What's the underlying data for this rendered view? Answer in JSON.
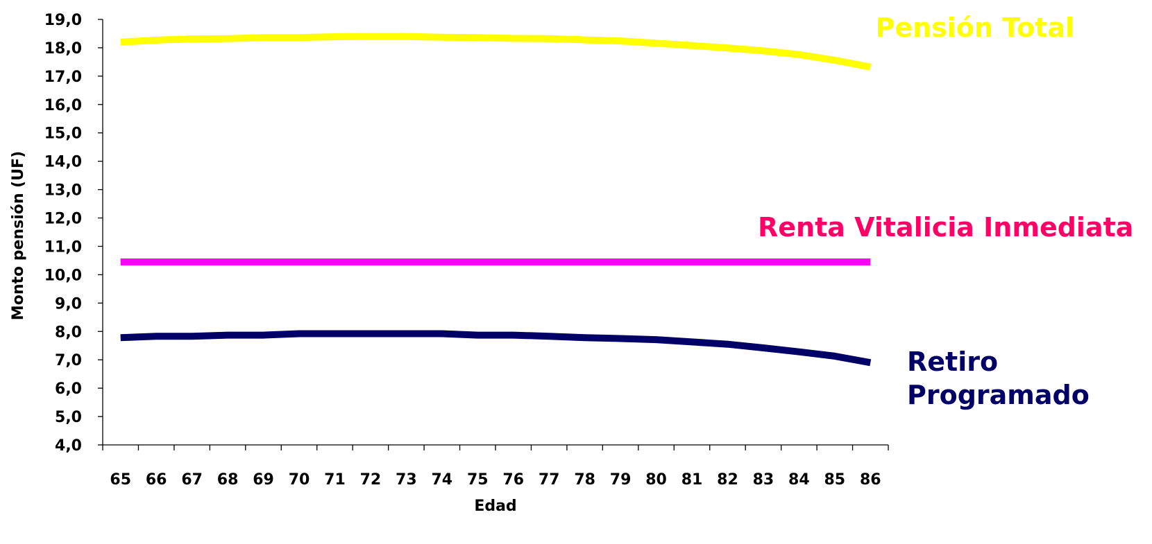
{
  "chart_data": {
    "type": "line",
    "xlabel": "Edad",
    "ylabel": "Monto pensión (UF)",
    "ylim": [
      4,
      19
    ],
    "yticks": [
      "4,0",
      "5,0",
      "6,0",
      "7,0",
      "8,0",
      "9,0",
      "10,0",
      "11,0",
      "12,0",
      "13,0",
      "14,0",
      "15,0",
      "16,0",
      "17,0",
      "18,0",
      "19,0"
    ],
    "categories": [
      "65",
      "66",
      "67",
      "68",
      "69",
      "70",
      "71",
      "72",
      "73",
      "74",
      "75",
      "76",
      "77",
      "78",
      "79",
      "80",
      "81",
      "82",
      "83",
      "84",
      "85",
      "86"
    ],
    "grid": false,
    "series": [
      {
        "name": "Pensión Total",
        "color": "#ffff00",
        "label_lines": [
          "Pensión Total"
        ],
        "values": [
          18.2,
          18.27,
          18.31,
          18.32,
          18.36,
          18.36,
          18.39,
          18.4,
          18.4,
          18.37,
          18.36,
          18.33,
          18.32,
          18.28,
          18.24,
          18.16,
          18.08,
          17.99,
          17.89,
          17.76,
          17.56,
          17.32
        ]
      },
      {
        "name": "Renta Vitalicia Inmediata",
        "color": "#ff00ff",
        "label_color": "#ff0066",
        "label_lines": [
          "Renta Vitalicia Inmediata"
        ],
        "values": [
          10.45,
          10.45,
          10.45,
          10.45,
          10.45,
          10.45,
          10.45,
          10.45,
          10.45,
          10.45,
          10.45,
          10.45,
          10.45,
          10.45,
          10.45,
          10.45,
          10.45,
          10.45,
          10.45,
          10.45,
          10.45,
          10.45
        ]
      },
      {
        "name": "Retiro Programado",
        "color": "#000066",
        "label_color": "#000066",
        "label_lines": [
          "Retiro",
          "Programado"
        ],
        "values": [
          7.78,
          7.83,
          7.83,
          7.87,
          7.87,
          7.92,
          7.92,
          7.92,
          7.92,
          7.92,
          7.87,
          7.87,
          7.83,
          7.78,
          7.75,
          7.71,
          7.63,
          7.55,
          7.42,
          7.28,
          7.13,
          6.9
        ]
      }
    ]
  }
}
